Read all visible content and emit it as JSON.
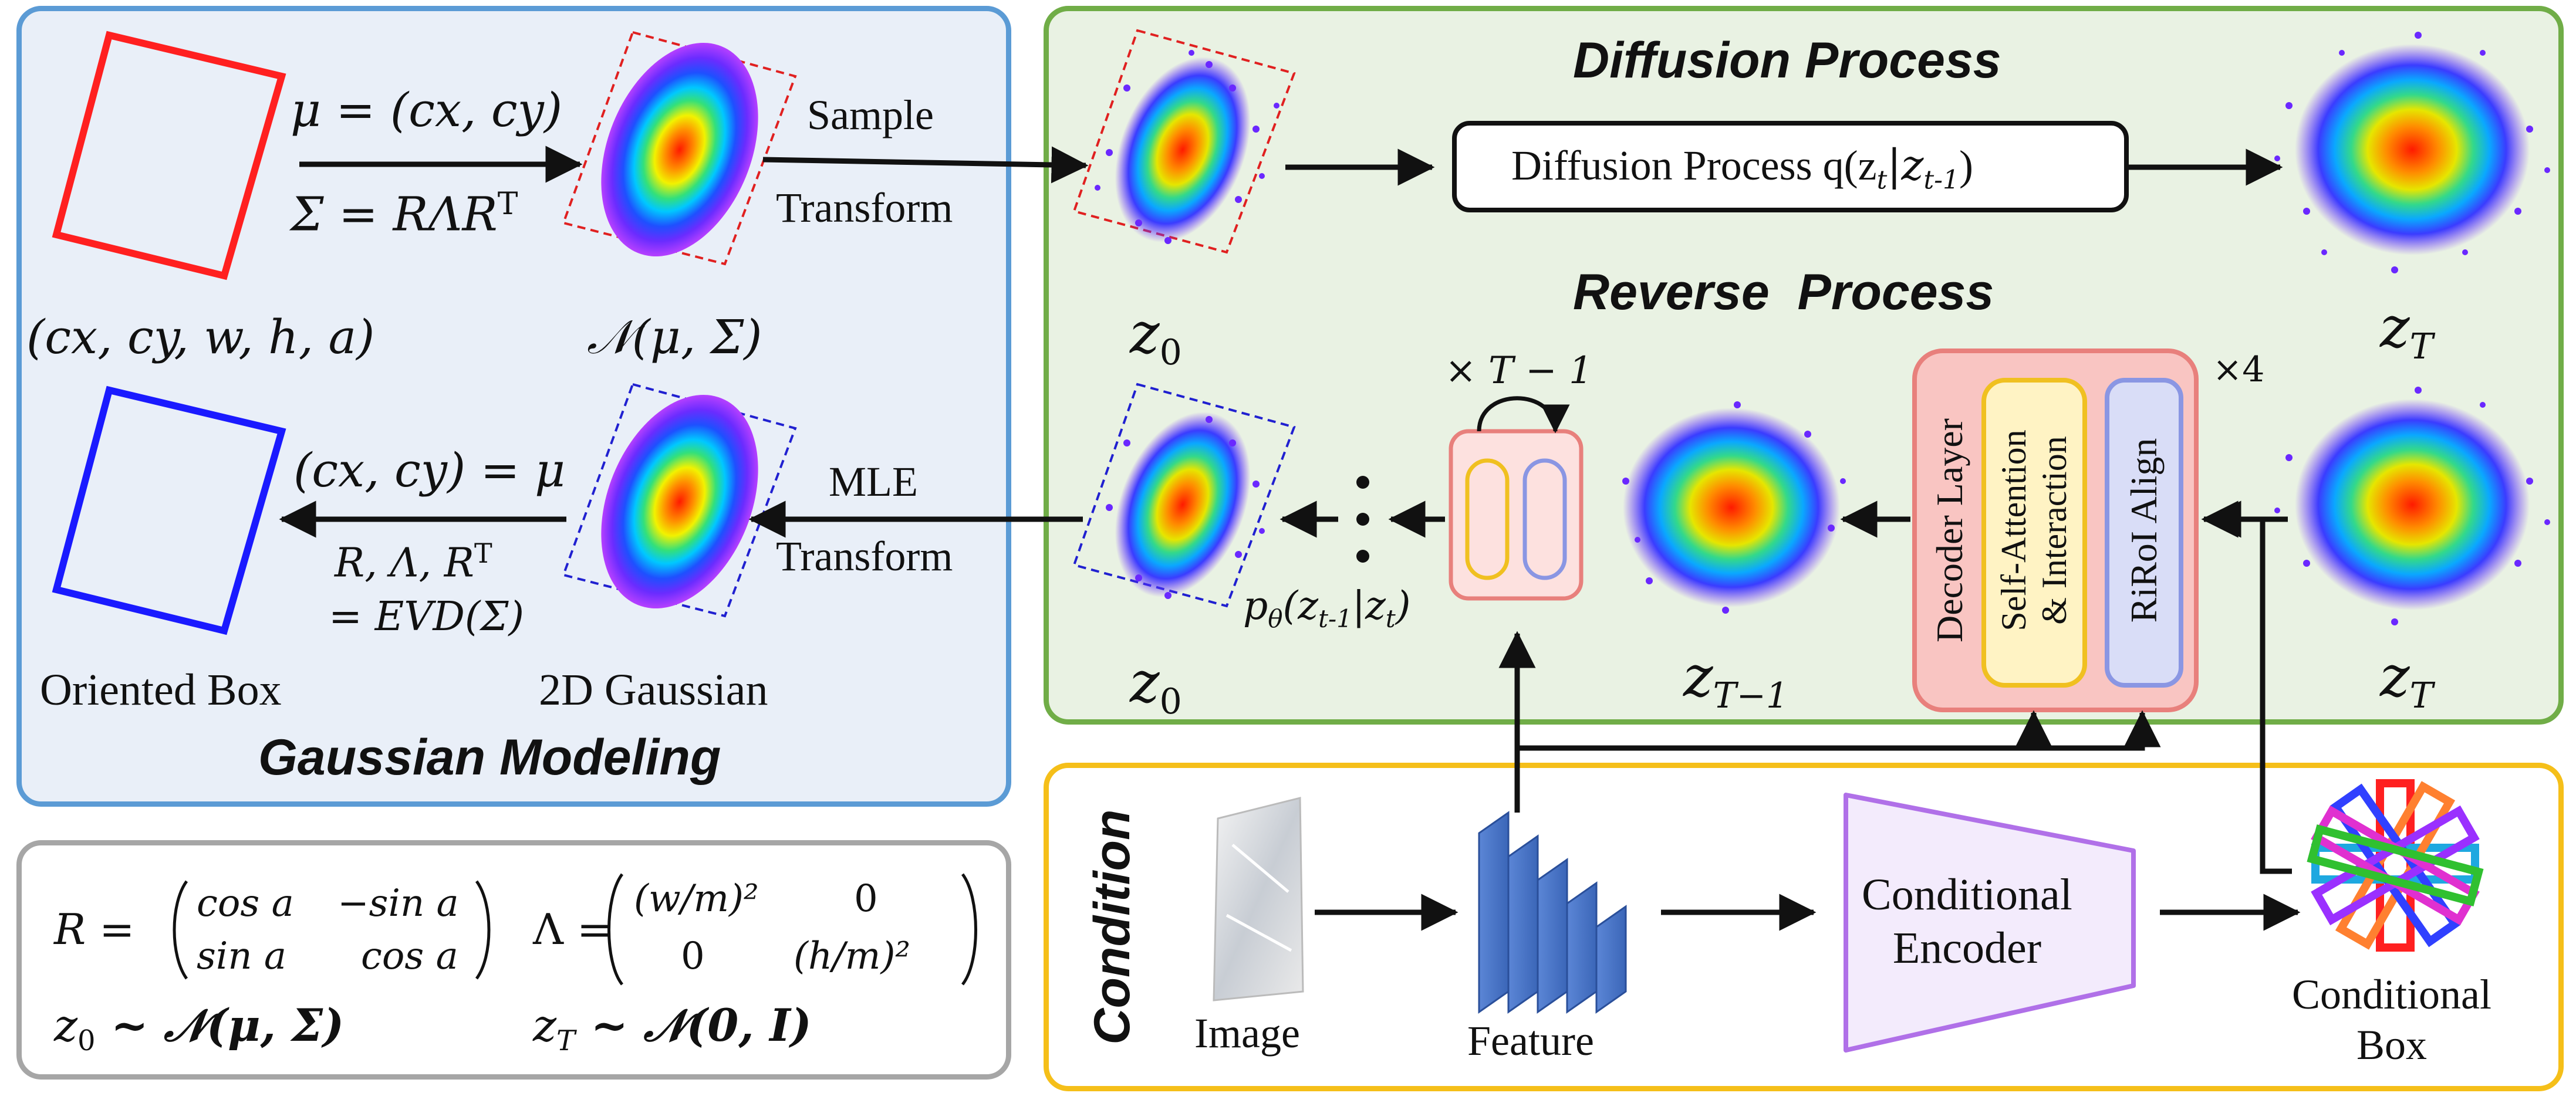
{
  "colors": {
    "gaussian_panel_bg": "#e9eff8",
    "gaussian_panel_border": "#5b9bd5",
    "diffusion_panel_bg": "#e9f2e3",
    "diffusion_panel_border": "#70ad47",
    "condition_panel_border": "#f5bf19",
    "formula_panel_border": "#a6a6a6",
    "box_red": "#ff2020",
    "box_blue": "#1a1aff",
    "decoder_bg": "#f9c5c2",
    "decoder_border": "#e8807c",
    "self_attention_border": "#f0c020",
    "rirol_bg": "#d9ddf7",
    "rirol_border": "#8a96e3",
    "encoder_border": "#b070e8"
  },
  "gaussian_modeling": {
    "title": "Gaussian Modeling",
    "box_params": "(cx, cy, w, h, a)",
    "mu_eq": "μ = (cx, cy)",
    "sigma_eq": "Σ = RΛR",
    "sigma_sup": "T",
    "normal_label": "𝒩(μ, Σ)",
    "sample_label": "Sample",
    "transform_label_top": "Transform",
    "mle_label": "MLE",
    "transform_label_bottom": "Transform",
    "cxcy_eq": "(cx, cy) = μ",
    "evd_line1": "R, Λ, R",
    "evd_sup": "T",
    "evd_line2": "= EVD(Σ)",
    "oriented_box_label": "Oriented Box",
    "gaussian_2d_label": "2D Gaussian"
  },
  "diffusion": {
    "title_top": "Diffusion Process",
    "title_bottom": "Reverse  Process",
    "process_box_text": "Diffusion Process q(z",
    "process_box_sub1": "t",
    "process_box_mid": "|z",
    "process_box_sub2": "t-1",
    "process_box_end": ")",
    "z0_top": "z",
    "z0_top_sub": "0",
    "zT_top": "z",
    "zT_top_sub": "T",
    "z0_bottom": "z",
    "z0_bottom_sub": "0",
    "zT1": "z",
    "zT1_sub": "T−1",
    "zT_bottom": "z",
    "zT_bottom_sub": "T",
    "loop_label": "× T − 1",
    "p_theta_label": "p",
    "p_theta_sub": "θ",
    "p_theta_args": "(z",
    "p_theta_args_sub1": "t-1",
    "p_theta_args_mid": "|z",
    "p_theta_args_sub2": "t",
    "p_theta_args_end": ")",
    "times_four": "×4",
    "decoder_layer": "Decoder Layer",
    "self_attention_line1": "Self-Attention",
    "self_attention_line2": "& Interaction",
    "rirol_align": "RiRoI Align"
  },
  "condition": {
    "title": "Condition",
    "image_label": "Image",
    "feature_label": "Feature",
    "encoder_line1": "Conditional",
    "encoder_line2": "Encoder",
    "box_line1": "Conditional",
    "box_line2": "Box"
  },
  "formulas": {
    "R_lhs": "R =",
    "R_r1c1": "cos a",
    "R_r1c2": "−sin a",
    "R_r2c1": "sin a",
    "R_r2c2": "cos a",
    "L_lhs": "Λ =",
    "L_r1c1": "(w/m)²",
    "L_r1c2": "0",
    "L_r2c1": "0",
    "L_r2c2": "(h/m)²",
    "z0_dist": "z",
    "z0_dist_sub": "0",
    "z0_dist_rhs": " ~ 𝒩(μ, Σ)",
    "zT_dist": "z",
    "zT_dist_sub": "T",
    "zT_dist_rhs": " ~ 𝒩(0, I)"
  }
}
